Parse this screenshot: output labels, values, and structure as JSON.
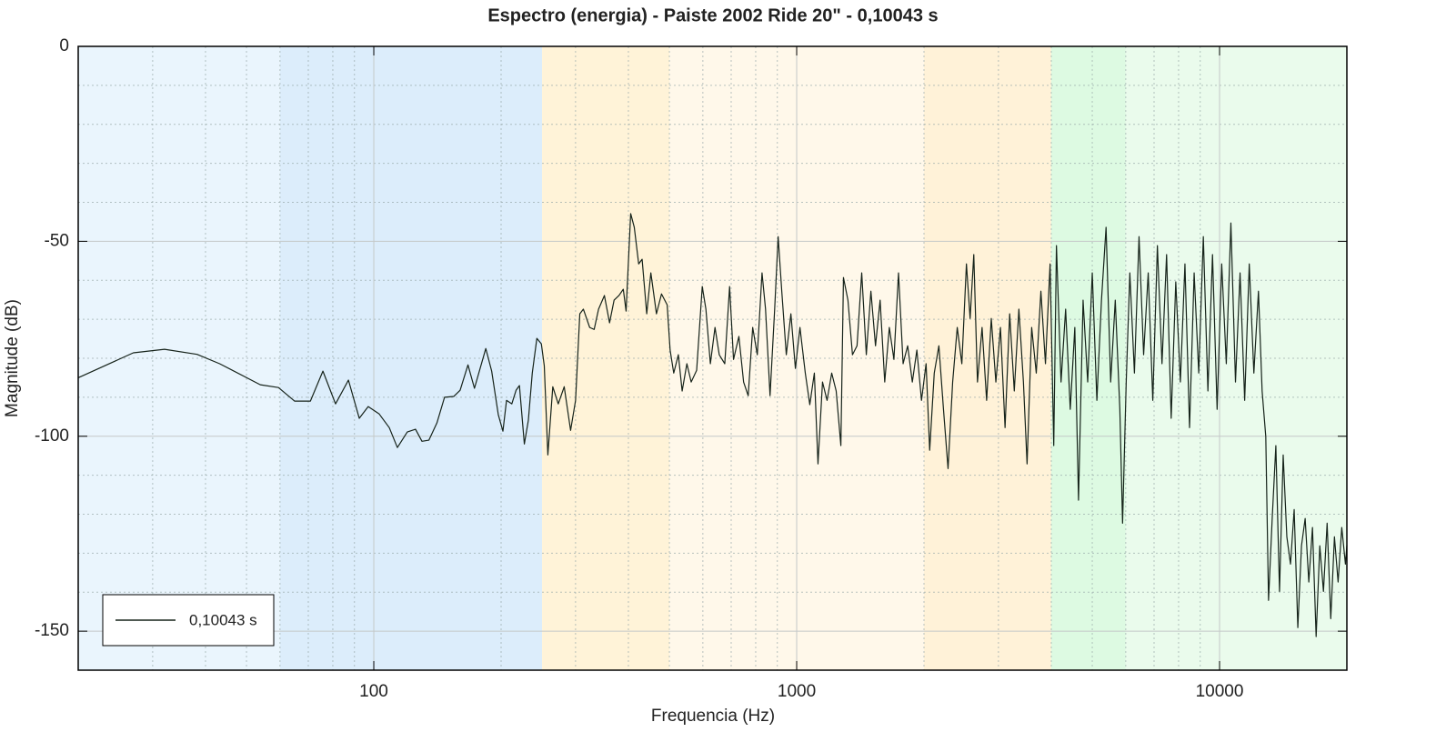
{
  "chart_data": {
    "type": "line",
    "title": "Espectro (energia) - Paiste 2002 Ride 20\" - 0,10043 s",
    "xlabel": "Frequencia (Hz)",
    "ylabel": "Magnitude (dB)",
    "xscale": "log",
    "xlim": [
      20,
      20000
    ],
    "xticks": [
      100,
      1000,
      10000
    ],
    "xminor": [
      20,
      30,
      40,
      50,
      60,
      70,
      80,
      90,
      200,
      300,
      400,
      500,
      600,
      700,
      800,
      900,
      2000,
      3000,
      4000,
      5000,
      6000,
      7000,
      8000,
      9000,
      20000
    ],
    "ylim": [
      -160,
      0
    ],
    "yticks": [
      0,
      -50,
      -100,
      -150
    ],
    "yminor": [
      -10,
      -20,
      -30,
      -40,
      -60,
      -70,
      -80,
      -90,
      -110,
      -120,
      -130,
      -140
    ],
    "grid": true,
    "legend_loc": "lower left",
    "bands": [
      {
        "from": 20,
        "to": 60,
        "color": "#eaf5fd"
      },
      {
        "from": 60,
        "to": 250,
        "color": "#dcedfb"
      },
      {
        "from": 250,
        "to": 500,
        "color": "#fff3d8"
      },
      {
        "from": 500,
        "to": 2000,
        "color": "#fff8ea"
      },
      {
        "from": 2000,
        "to": 4000,
        "color": "#fff2d8"
      },
      {
        "from": 4000,
        "to": 6000,
        "color": "#ddfae2"
      },
      {
        "from": 6000,
        "to": 20000,
        "color": "#eafbec"
      }
    ],
    "x": [
      20,
      27,
      32,
      38.2,
      43.2,
      53.9,
      59.5,
      65,
      70.8,
      75.8,
      81.2,
      87.1,
      92.4,
      97,
      103,
      108.8,
      113.7,
      120,
      125.5,
      130,
      135,
      141,
      147,
      154.5,
      160,
      167,
      173,
      184,
      190,
      197,
      202,
      206,
      212,
      217,
      221,
      227,
      232,
      237,
      243,
      249,
      253,
      258,
      265,
      273,
      282,
      292,
      300,
      307,
      313,
      324,
      332,
      340,
      351,
      361,
      370,
      380,
      389,
      395,
      405,
      413,
      423,
      431,
      442,
      452,
      466,
      479,
      494,
      502,
      512,
      525,
      536,
      550,
      563,
      580,
      598,
      610,
      625,
      641,
      656,
      676,
      694,
      709,
      730,
      749,
      768,
      787,
      807,
      828,
      844,
      865,
      887,
      904,
      922,
      945,
      969,
      993,
      1018,
      1048,
      1074,
      1101,
      1123,
      1151,
      1180,
      1210,
      1240,
      1272,
      1290,
      1322,
      1355,
      1389,
      1425,
      1461,
      1498,
      1536,
      1575,
      1615,
      1656,
      1698,
      1741,
      1785,
      1830,
      1877,
      1924,
      1973,
      2023,
      2063,
      2115,
      2169,
      2224,
      2280,
      2338,
      2397,
      2458,
      2520,
      2571,
      2623,
      2676,
      2744,
      2813,
      2885,
      2958,
      3033,
      3110,
      3189,
      3270,
      3353,
      3437,
      3506,
      3595,
      3686,
      3780,
      3875,
      3974,
      4054,
      4114,
      4218,
      4325,
      4435,
      4547,
      4639,
      4756,
      4877,
      5000,
      5127,
      5257,
      5390,
      5527,
      5667,
      5810,
      5897,
      6015,
      6135,
      6290,
      6450,
      6613,
      6781,
      6952,
      7128,
      7309,
      7494,
      7684,
      7878,
      8078,
      8282,
      8492,
      8707,
      8928,
      9154,
      9385,
      9623,
      9867,
      10117,
      10373,
      10636,
      10905,
      11181,
      11465,
      11755,
      12053,
      12358,
      12607,
      12861,
      13055,
      13318,
      13586,
      13860,
      14139,
      14424,
      14714,
      15011,
      15313,
      15621,
      15936,
      16257,
      16584,
      16918,
      17259,
      17606,
      17961,
      18322,
      18691,
      19068,
      19452,
      19843,
      20000
    ],
    "series": [
      {
        "name": "0,10043 s",
        "color": "#16231a",
        "values": [
          -85,
          -78.6,
          -77.7,
          -79,
          -81.4,
          -86.8,
          -87.5,
          -91,
          -91,
          -83.3,
          -91.7,
          -85.6,
          -95.4,
          -92.4,
          -94.3,
          -97.8,
          -102.9,
          -98.9,
          -98.2,
          -101.3,
          -101,
          -96.6,
          -90,
          -89.8,
          -88.2,
          -81.7,
          -87.7,
          -77.5,
          -83.3,
          -94.5,
          -98.7,
          -90.8,
          -91.7,
          -88.2,
          -87,
          -102,
          -95.9,
          -83.8,
          -74.9,
          -76.3,
          -81.9,
          -104.8,
          -87.3,
          -91.7,
          -87.3,
          -98.5,
          -90.8,
          -68.6,
          -67.4,
          -72.1,
          -72.6,
          -67.4,
          -63.9,
          -70.9,
          -65.1,
          -63.9,
          -62.3,
          -67.9,
          -42.9,
          -46.4,
          -55.8,
          -54.6,
          -68.6,
          -58.1,
          -68.6,
          -63.5,
          -66.3,
          -77.9,
          -83.8,
          -79.1,
          -88.4,
          -81.4,
          -86.1,
          -83.1,
          -61.6,
          -67.4,
          -81.4,
          -72.1,
          -79.1,
          -81.4,
          -61.6,
          -80.3,
          -74.4,
          -86.1,
          -89.6,
          -72.1,
          -79.1,
          -58.1,
          -67.4,
          -89.6,
          -67.4,
          -48.8,
          -62.8,
          -79.1,
          -68.6,
          -82.6,
          -72.1,
          -83.8,
          -91.9,
          -83.8,
          -107.1,
          -86.1,
          -90.8,
          -83.8,
          -88.4,
          -102.4,
          -59.3,
          -65.1,
          -79.1,
          -76.8,
          -58.1,
          -79.1,
          -62.8,
          -76.8,
          -65.1,
          -86.1,
          -72.1,
          -80.3,
          -58.1,
          -81.4,
          -76.8,
          -86.1,
          -77.9,
          -90.8,
          -81.4,
          -103.6,
          -83.8,
          -76.8,
          -93.1,
          -108.3,
          -86.1,
          -72.1,
          -81.4,
          -55.8,
          -69.8,
          -53.4,
          -86.1,
          -72.1,
          -90.8,
          -69.8,
          -86.1,
          -72.1,
          -97.8,
          -68.6,
          -88.4,
          -67.4,
          -86.1,
          -107.1,
          -72.1,
          -83.8,
          -62.8,
          -81.4,
          -55.8,
          -102.4,
          -51.1,
          -86.1,
          -67.4,
          -93.1,
          -72.1,
          -116.4,
          -65.1,
          -86.1,
          -58.1,
          -90.8,
          -65.1,
          -46.4,
          -86.1,
          -65.1,
          -93.1,
          -122.3,
          -86.1,
          -58.1,
          -83.8,
          -48.8,
          -79.1,
          -58.1,
          -90.8,
          -51.1,
          -81.4,
          -53.4,
          -95.4,
          -60.4,
          -86.1,
          -55.8,
          -97.8,
          -58.1,
          -83.8,
          -48.8,
          -88.4,
          -53.4,
          -93.1,
          -55.8,
          -81.4,
          -45.3,
          -86.1,
          -58.1,
          -90.8,
          -55.8,
          -83.8,
          -62.8,
          -88.4,
          -100.1,
          -142.1,
          -121.1,
          -102.4,
          -139.8,
          -104.8,
          -125.8,
          -132.8,
          -118.8,
          -149.1,
          -128.1,
          -121.1,
          -137.4,
          -123.4,
          -151.4,
          -128.1,
          -139.8,
          -122.3,
          -146.8,
          -125.8,
          -137.4,
          -123.4,
          -132.8,
          -128
        ]
      }
    ]
  }
}
